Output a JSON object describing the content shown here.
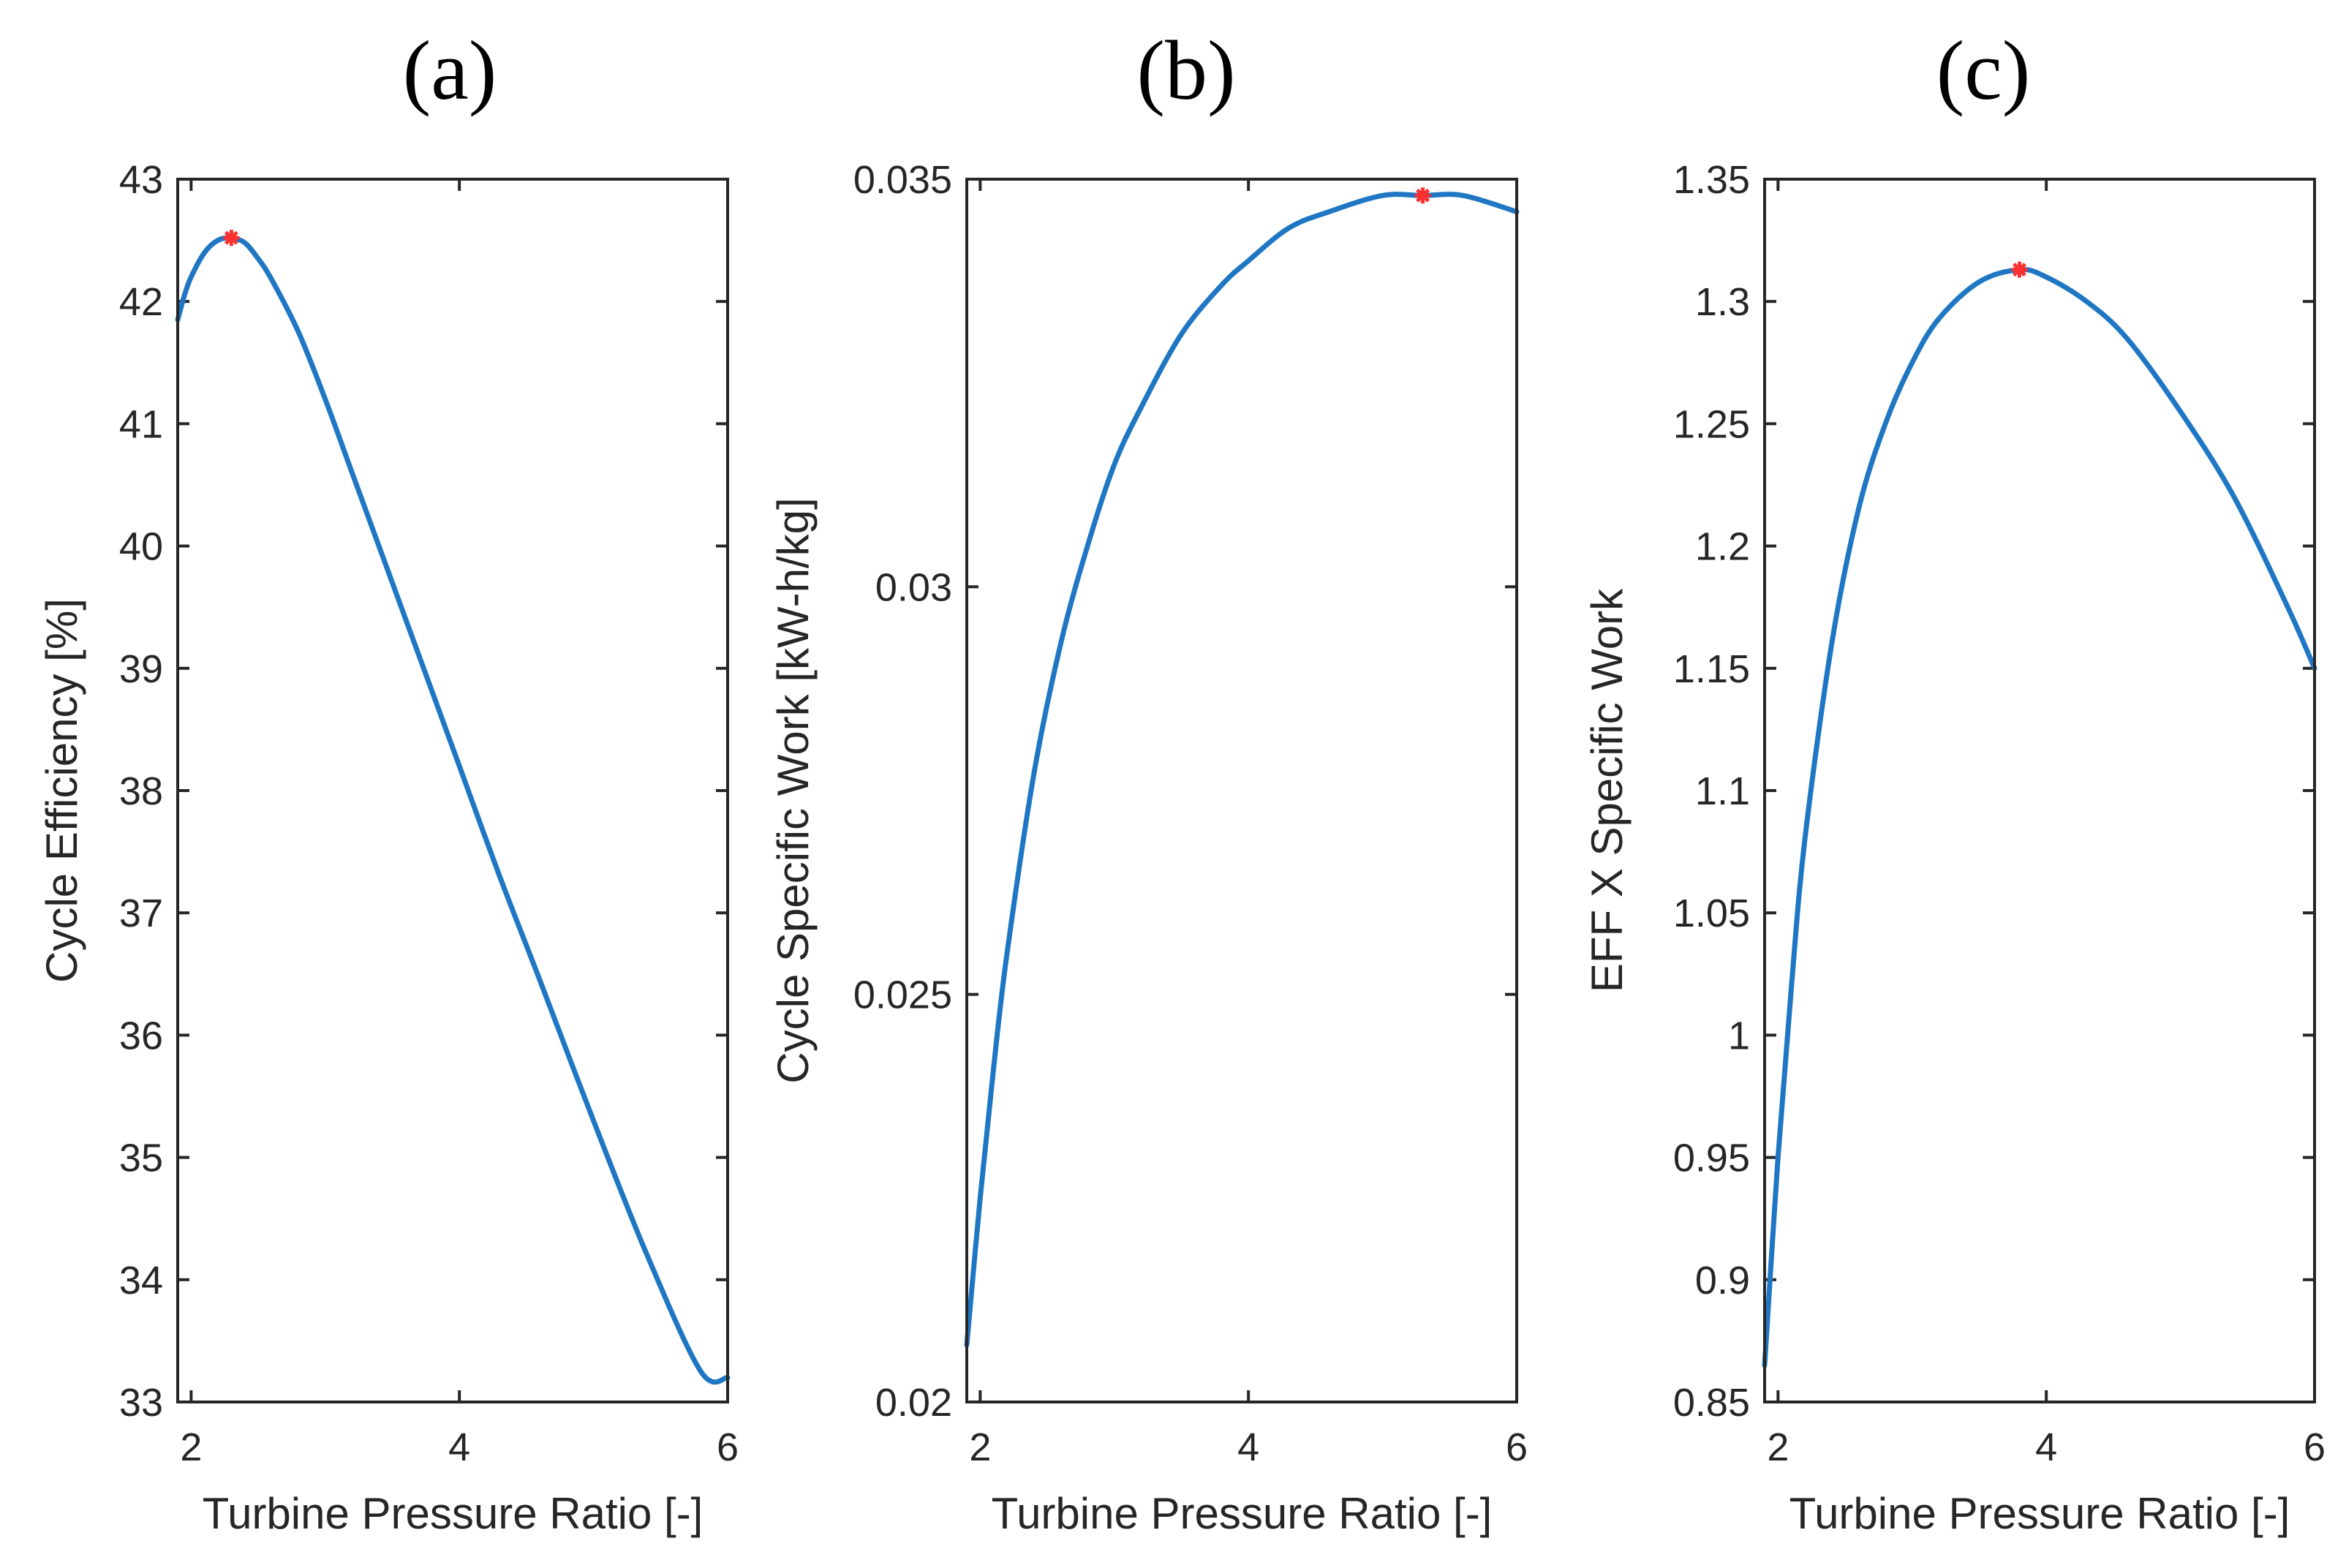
{
  "colors": {
    "line": "#1f77c4",
    "marker": "#ff3030",
    "axis": "#262626"
  },
  "chart_data": [
    {
      "type": "line",
      "panel_label": "(a)",
      "title": "(a)",
      "xlabel": "Turbine Pressure Ratio [-]",
      "ylabel": "Cycle Efficiency [%]",
      "xlim": [
        1.9,
        6
      ],
      "ylim": [
        33,
        43
      ],
      "xticks": [
        2,
        4,
        6
      ],
      "xtick_labels": [
        "2",
        "4",
        "6"
      ],
      "yticks": [
        33,
        34,
        35,
        36,
        37,
        38,
        39,
        40,
        41,
        42,
        43
      ],
      "ytick_labels": [
        "33",
        "34",
        "35",
        "36",
        "37",
        "38",
        "39",
        "40",
        "41",
        "42",
        "43"
      ],
      "series": [
        {
          "name": "Cycle Efficiency",
          "x": [
            1.9,
            1.95,
            2.0,
            2.1,
            2.2,
            2.3,
            2.4,
            2.5,
            2.6,
            2.8,
            3.0,
            3.2,
            3.5,
            3.8,
            4.0,
            4.3,
            4.6,
            5.0,
            5.4,
            5.8,
            6.0
          ],
          "y": [
            41.85,
            42.05,
            42.2,
            42.4,
            42.5,
            42.52,
            42.48,
            42.35,
            42.18,
            41.75,
            41.2,
            40.6,
            39.7,
            38.8,
            38.2,
            37.3,
            36.45,
            35.3,
            34.2,
            33.25,
            33.2
          ]
        }
      ],
      "optimum": {
        "x": 2.3,
        "y": 42.52
      }
    },
    {
      "type": "line",
      "panel_label": "(b)",
      "title": "(b)",
      "xlabel": "Turbine Pressure Ratio [-]",
      "ylabel": "Cycle Specific Work [kW-h/kg]",
      "xlim": [
        1.9,
        6
      ],
      "ylim": [
        0.02,
        0.035
      ],
      "xticks": [
        2,
        4,
        6
      ],
      "xtick_labels": [
        "2",
        "4",
        "6"
      ],
      "yticks": [
        0.02,
        0.025,
        0.03,
        0.035
      ],
      "ytick_labels": [
        "0.02",
        "0.025",
        "0.03",
        "0.035"
      ],
      "series": [
        {
          "name": "Cycle Specific Work",
          "x": [
            1.9,
            2.0,
            2.1,
            2.2,
            2.4,
            2.6,
            2.8,
            3.0,
            3.2,
            3.5,
            3.8,
            4.0,
            4.3,
            4.6,
            5.0,
            5.3,
            5.6,
            6.0
          ],
          "y": [
            0.0207,
            0.0225,
            0.0241,
            0.0255,
            0.0277,
            0.0293,
            0.0305,
            0.0315,
            0.0322,
            0.0331,
            0.0337,
            0.034,
            0.0344,
            0.0346,
            0.0348,
            0.0348,
            0.0348,
            0.0346
          ]
        }
      ],
      "optimum": {
        "x": 5.3,
        "y": 0.0348
      }
    },
    {
      "type": "line",
      "panel_label": "(c)",
      "title": "(c)",
      "xlabel": "Turbine Pressure Ratio [-]",
      "ylabel": "EFF X Specific Work",
      "xlim": [
        1.9,
        6
      ],
      "ylim": [
        0.85,
        1.35
      ],
      "xticks": [
        2,
        4,
        6
      ],
      "xtick_labels": [
        "2",
        "4",
        "6"
      ],
      "yticks": [
        0.85,
        0.9,
        0.95,
        1.0,
        1.05,
        1.1,
        1.15,
        1.2,
        1.25,
        1.3,
        1.35
      ],
      "ytick_labels": [
        "0.85",
        "0.9",
        "0.95",
        "1",
        "1.05",
        "1.1",
        "1.15",
        "1.2",
        "1.25",
        "1.3",
        "1.35"
      ],
      "series": [
        {
          "name": "EFF X Specific Work",
          "x": [
            1.9,
            2.0,
            2.1,
            2.2,
            2.4,
            2.6,
            2.8,
            3.0,
            3.2,
            3.5,
            3.8,
            4.0,
            4.3,
            4.6,
            5.0,
            5.4,
            5.8,
            6.0
          ],
          "y": [
            0.865,
            0.95,
            1.02,
            1.08,
            1.16,
            1.215,
            1.25,
            1.275,
            1.293,
            1.308,
            1.313,
            1.31,
            1.3,
            1.285,
            1.255,
            1.22,
            1.175,
            1.15
          ]
        }
      ],
      "optimum": {
        "x": 3.8,
        "y": 1.313
      }
    }
  ]
}
